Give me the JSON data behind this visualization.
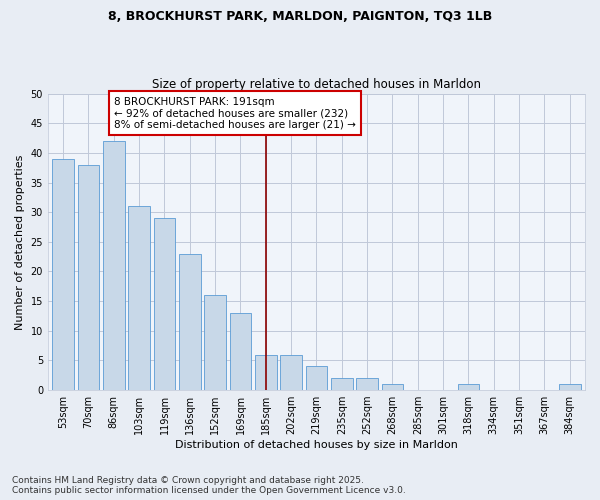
{
  "title": "8, BROCKHURST PARK, MARLDON, PAIGNTON, TQ3 1LB",
  "subtitle": "Size of property relative to detached houses in Marldon",
  "xlabel": "Distribution of detached houses by size in Marldon",
  "ylabel": "Number of detached properties",
  "categories": [
    "53sqm",
    "70sqm",
    "86sqm",
    "103sqm",
    "119sqm",
    "136sqm",
    "152sqm",
    "169sqm",
    "185sqm",
    "202sqm",
    "219sqm",
    "235sqm",
    "252sqm",
    "268sqm",
    "285sqm",
    "301sqm",
    "318sqm",
    "334sqm",
    "351sqm",
    "367sqm",
    "384sqm"
  ],
  "values": [
    39,
    38,
    42,
    31,
    29,
    23,
    16,
    13,
    6,
    6,
    4,
    2,
    2,
    1,
    0,
    0,
    1,
    0,
    0,
    0,
    1
  ],
  "bar_color": "#c8d8e8",
  "bar_edge_color": "#5b9bd5",
  "vline_x": 8,
  "vline_color": "#8b0000",
  "annotation_text": "8 BROCKHURST PARK: 191sqm\n← 92% of detached houses are smaller (232)\n8% of semi-detached houses are larger (21) →",
  "annotation_box_color": "#ffffff",
  "annotation_box_edge": "#cc0000",
  "ylim": [
    0,
    50
  ],
  "yticks": [
    0,
    5,
    10,
    15,
    20,
    25,
    30,
    35,
    40,
    45,
    50
  ],
  "bg_color": "#e8edf4",
  "plot_bg_color": "#f0f4fa",
  "grid_color": "#c0c8d8",
  "footnote": "Contains HM Land Registry data © Crown copyright and database right 2025.\nContains public sector information licensed under the Open Government Licence v3.0.",
  "title_fontsize": 9,
  "subtitle_fontsize": 8.5,
  "xlabel_fontsize": 8,
  "ylabel_fontsize": 8,
  "tick_fontsize": 7,
  "annot_fontsize": 7.5,
  "footnote_fontsize": 6.5
}
